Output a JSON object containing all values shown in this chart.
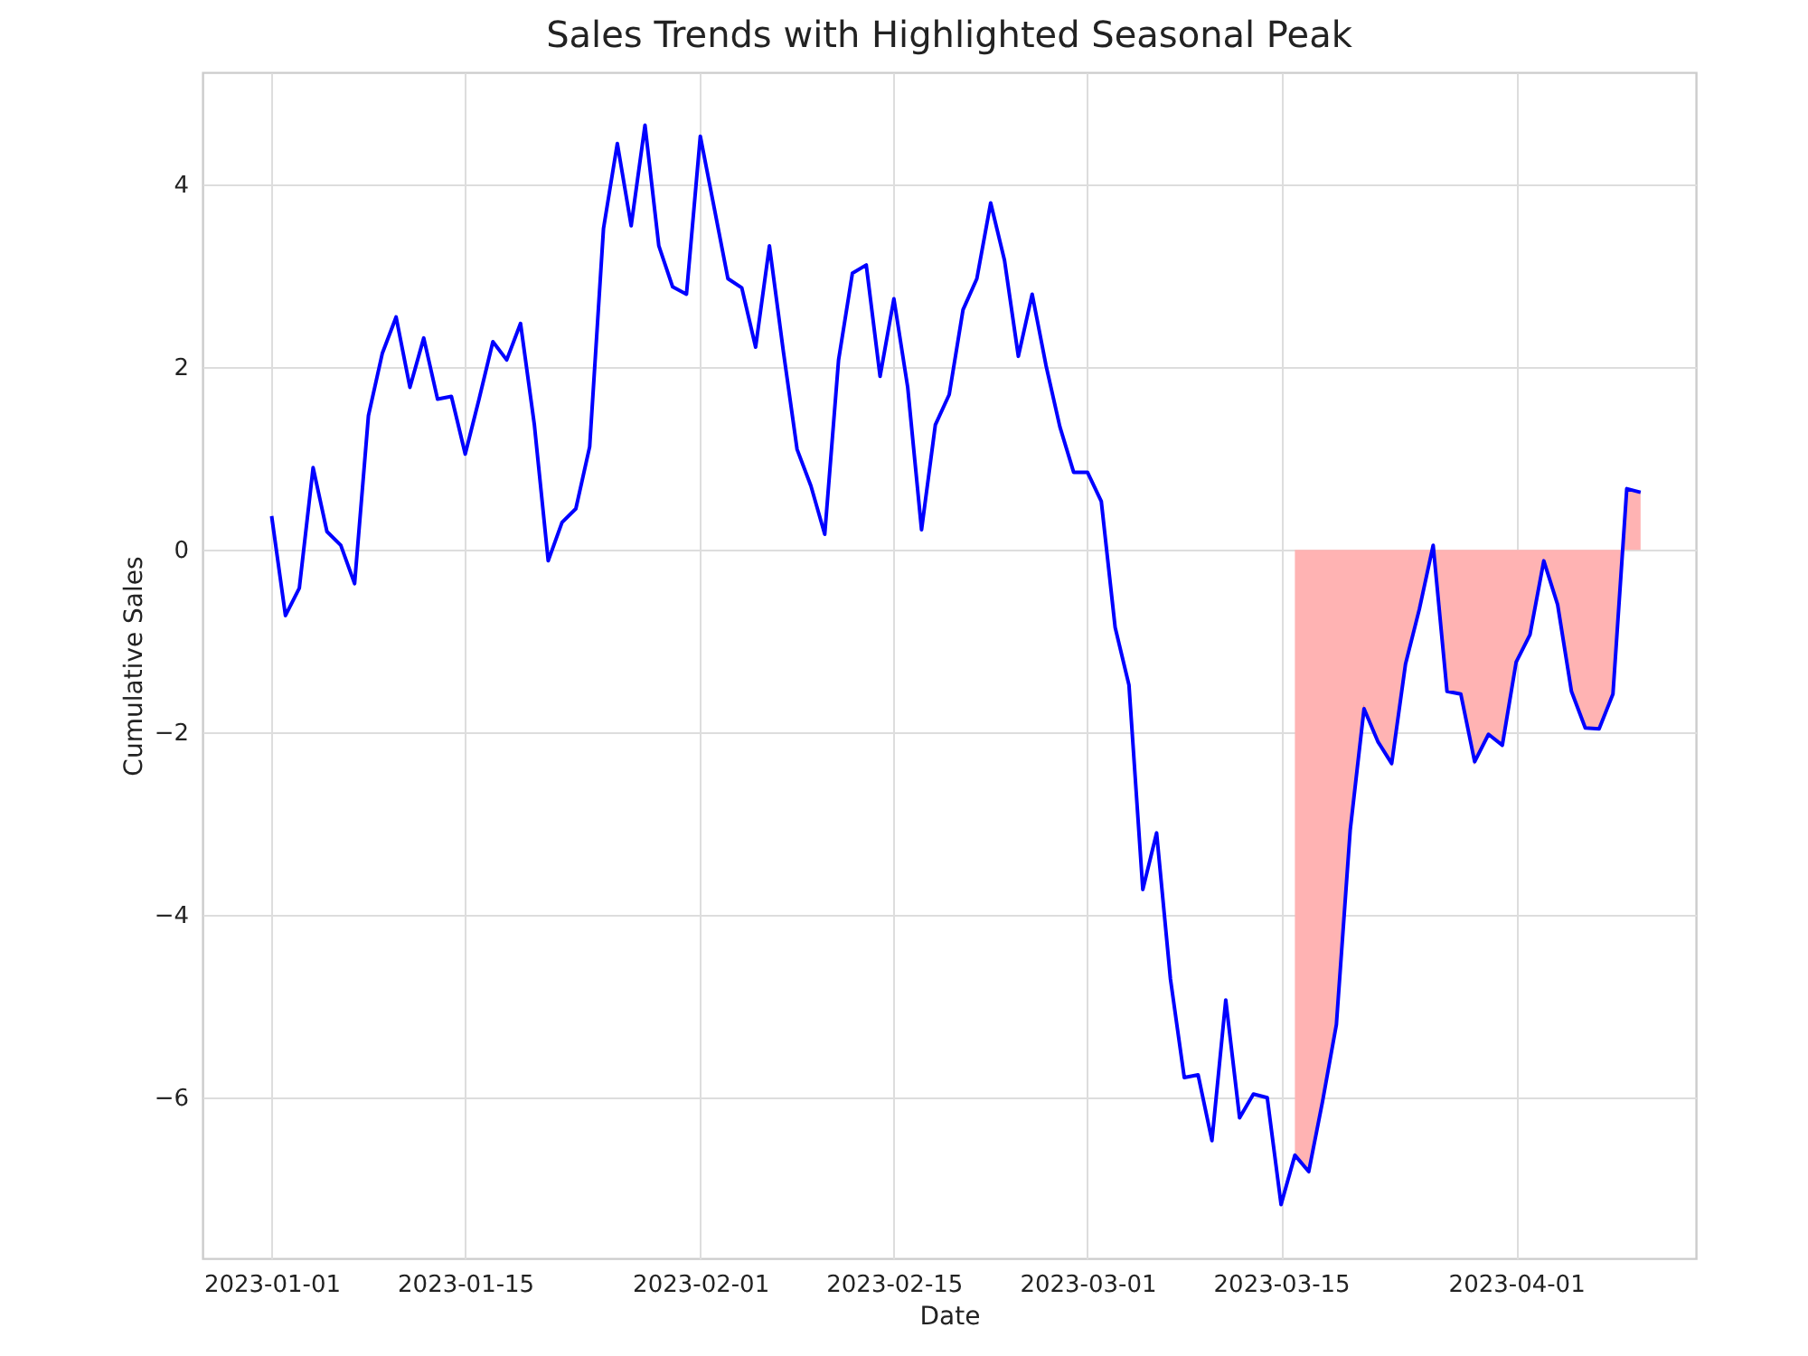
{
  "chart_data": {
    "type": "line",
    "title": "Sales Trends with Highlighted Seasonal Peak",
    "xlabel": "Date",
    "ylabel": "Cumulative Sales",
    "xlim": [
      "2022-12-27",
      "2023-04-14"
    ],
    "xticks": [
      "2023-01-01",
      "2023-01-15",
      "2023-02-01",
      "2023-02-15",
      "2023-03-01",
      "2023-03-15",
      "2023-04-01"
    ],
    "ylim": [
      -7.76,
      5.23
    ],
    "yticks": [
      {
        "value": -6,
        "label": "−6"
      },
      {
        "value": -4,
        "label": "−4"
      },
      {
        "value": -2,
        "label": "−2"
      },
      0,
      2,
      4
    ],
    "grid": true,
    "legend": false,
    "series": [
      {
        "type": "line",
        "color": "#0000ff",
        "x": [
          "2023-01-01",
          "2023-01-02",
          "2023-01-03",
          "2023-01-04",
          "2023-01-05",
          "2023-01-06",
          "2023-01-07",
          "2023-01-08",
          "2023-01-09",
          "2023-01-10",
          "2023-01-11",
          "2023-01-12",
          "2023-01-13",
          "2023-01-14",
          "2023-01-15",
          "2023-01-16",
          "2023-01-17",
          "2023-01-18",
          "2023-01-19",
          "2023-01-20",
          "2023-01-21",
          "2023-01-22",
          "2023-01-23",
          "2023-01-24",
          "2023-01-25",
          "2023-01-26",
          "2023-01-27",
          "2023-01-28",
          "2023-01-29",
          "2023-01-30",
          "2023-01-31",
          "2023-02-01",
          "2023-02-02",
          "2023-02-03",
          "2023-02-04",
          "2023-02-05",
          "2023-02-06",
          "2023-02-07",
          "2023-02-08",
          "2023-02-09",
          "2023-02-10",
          "2023-02-11",
          "2023-02-12",
          "2023-02-13",
          "2023-02-14",
          "2023-02-15",
          "2023-02-16",
          "2023-02-17",
          "2023-02-18",
          "2023-02-19",
          "2023-02-20",
          "2023-02-21",
          "2023-02-22",
          "2023-02-23",
          "2023-02-24",
          "2023-02-25",
          "2023-02-26",
          "2023-02-27",
          "2023-02-28",
          "2023-03-01",
          "2023-03-02",
          "2023-03-03",
          "2023-03-04",
          "2023-03-05",
          "2023-03-06",
          "2023-03-07",
          "2023-03-08",
          "2023-03-09",
          "2023-03-10",
          "2023-03-11",
          "2023-03-12",
          "2023-03-13",
          "2023-03-14",
          "2023-03-15",
          "2023-03-16",
          "2023-03-17",
          "2023-03-18",
          "2023-03-19",
          "2023-03-20",
          "2023-03-21",
          "2023-03-22",
          "2023-03-23",
          "2023-03-24",
          "2023-03-25",
          "2023-03-26",
          "2023-03-27",
          "2023-03-28",
          "2023-03-29",
          "2023-03-30",
          "2023-03-31",
          "2023-04-01",
          "2023-04-02",
          "2023-04-03",
          "2023-04-04",
          "2023-04-05",
          "2023-04-06",
          "2023-04-07",
          "2023-04-08",
          "2023-04-09",
          "2023-04-10"
        ],
        "values": [
          0.37,
          -0.72,
          -0.42,
          0.9,
          0.2,
          0.05,
          -0.37,
          1.47,
          2.15,
          2.55,
          1.78,
          2.32,
          1.65,
          1.68,
          1.05,
          1.65,
          2.28,
          2.08,
          2.48,
          1.37,
          -0.12,
          0.3,
          0.45,
          1.13,
          3.52,
          4.45,
          3.55,
          4.65,
          3.33,
          2.88,
          2.8,
          4.53,
          3.75,
          2.97,
          2.87,
          2.22,
          3.33,
          2.18,
          1.1,
          0.7,
          0.17,
          2.08,
          3.03,
          3.12,
          1.9,
          2.75,
          1.78,
          0.22,
          1.37,
          1.7,
          2.63,
          2.97,
          3.8,
          3.17,
          2.12,
          2.8,
          2.02,
          1.35,
          0.85,
          0.85,
          0.53,
          -0.85,
          -1.48,
          -3.72,
          -3.1,
          -4.7,
          -5.78,
          -5.75,
          -6.47,
          -4.93,
          -6.22,
          -5.96,
          -6.0,
          -7.17,
          -6.63,
          -6.81,
          -6.04,
          -5.2,
          -3.07,
          -1.74,
          -2.1,
          -2.34,
          -1.25,
          -0.65,
          0.05,
          -1.55,
          -1.58,
          -2.32,
          -2.02,
          -2.14,
          -1.23,
          -0.93,
          -0.12,
          -0.6,
          -1.55,
          -1.95,
          -1.96,
          -1.58,
          0.67,
          0.63
        ]
      },
      {
        "type": "area",
        "color": "#ffb3b3",
        "x": [
          "2023-03-16",
          "2023-03-17",
          "2023-03-18",
          "2023-03-19",
          "2023-03-20",
          "2023-03-21",
          "2023-03-22",
          "2023-03-23",
          "2023-03-24",
          "2023-03-25",
          "2023-03-26",
          "2023-03-27",
          "2023-03-28",
          "2023-03-29",
          "2023-03-30",
          "2023-03-31",
          "2023-04-01",
          "2023-04-02",
          "2023-04-03",
          "2023-04-04",
          "2023-04-05",
          "2023-04-06",
          "2023-04-07",
          "2023-04-08",
          "2023-04-09",
          "2023-04-10"
        ],
        "values": [
          -6.63,
          -6.81,
          -6.04,
          -5.2,
          -3.07,
          -1.74,
          -2.1,
          -2.34,
          -1.25,
          -0.65,
          0.05,
          -1.55,
          -1.58,
          -2.32,
          -2.02,
          -2.14,
          -1.23,
          -0.93,
          -0.12,
          -0.6,
          -1.55,
          -1.95,
          -1.96,
          -1.58,
          0.67,
          0.63
        ]
      }
    ]
  }
}
